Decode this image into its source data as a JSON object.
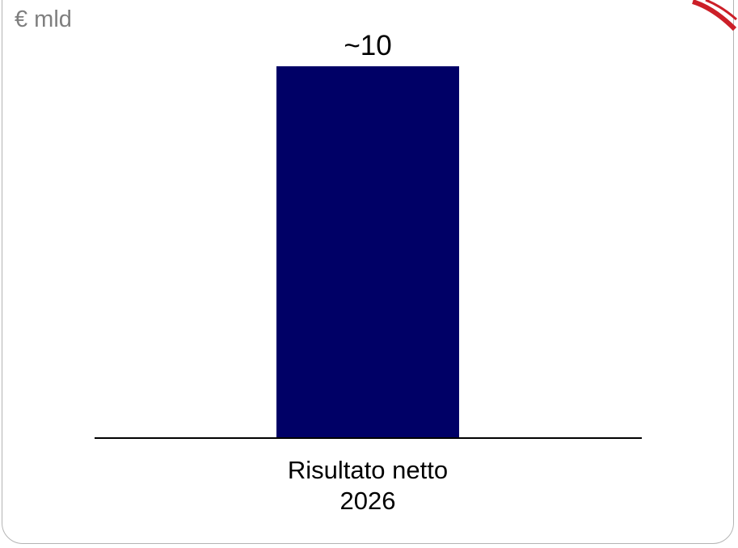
{
  "unit_label": "€ mld",
  "colors": {
    "bar": "#000066",
    "axis": "#000000",
    "text": "#000000",
    "unit_text": "#7f7f7f",
    "corner_mark": "#cc1f28"
  },
  "chart_data": {
    "type": "bar",
    "categories": [
      [
        "Risultato netto",
        "2026"
      ]
    ],
    "values": [
      10
    ],
    "data_labels": [
      "~10"
    ],
    "ylim": [
      0,
      10
    ],
    "grid": false,
    "legend": "none"
  }
}
